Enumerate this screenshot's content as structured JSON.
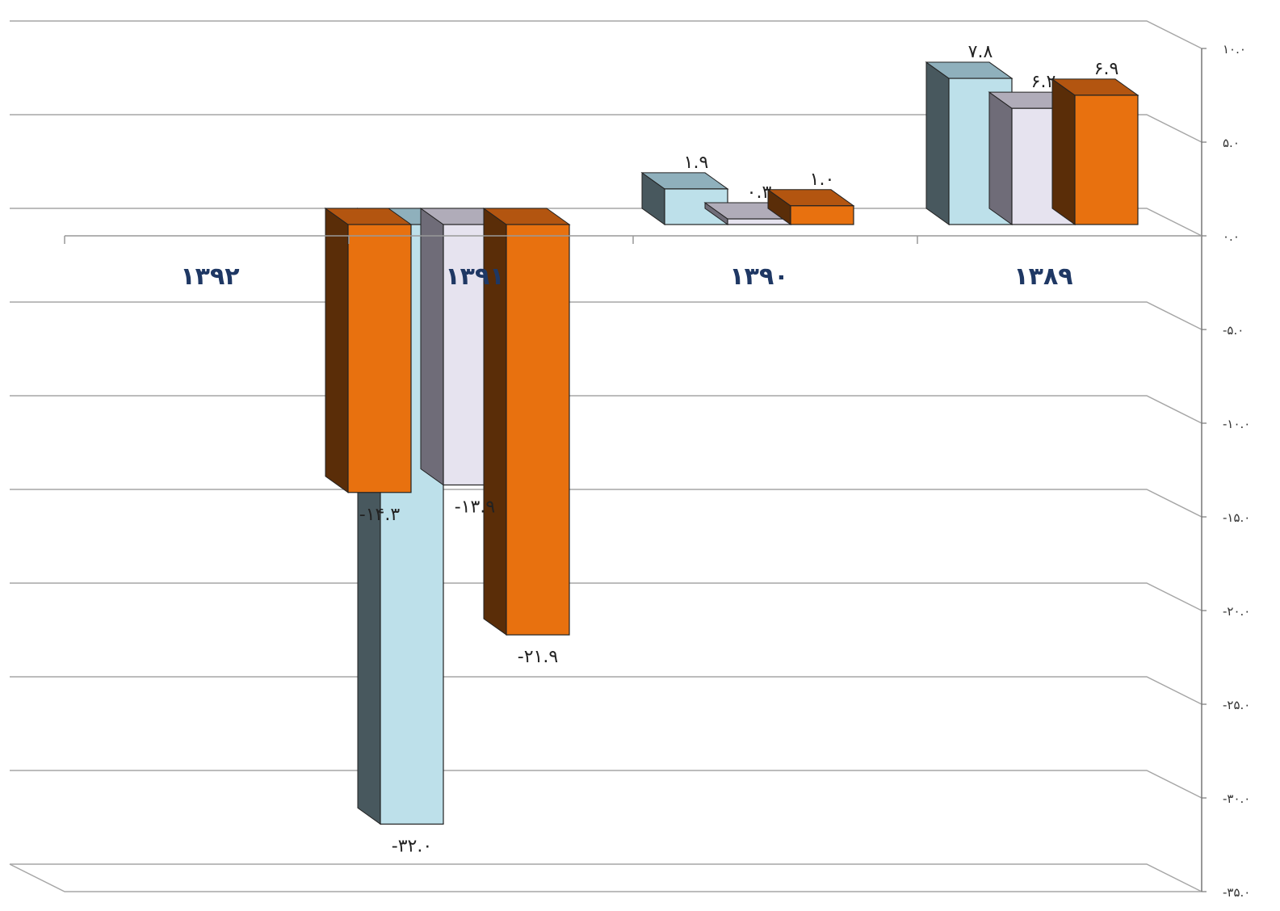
{
  "chart_data": {
    "type": "bar",
    "categories": [
      "۱۳۸۹",
      "۱۳۹۰",
      "۱۳۹۱",
      "۱۳۹۲"
    ],
    "series": [
      {
        "values": [
          7.8,
          1.9,
          -32.0,
          null
        ],
        "labels": [
          "۷.۸",
          "۱.۹",
          "-۳۲.۰",
          ""
        ]
      },
      {
        "values": [
          6.2,
          0.3,
          -13.9,
          null
        ],
        "labels": [
          "۶.۲",
          "۰.۳",
          "-۱۳.۹",
          ""
        ]
      },
      {
        "values": [
          6.9,
          1.0,
          -21.9,
          -14.3
        ],
        "labels": [
          "۶.۹",
          "۱.۰",
          "-۲۱.۹",
          "-۱۴.۳"
        ]
      }
    ],
    "ylim": [
      -35,
      10
    ],
    "yticks": [
      10,
      5,
      0,
      -5,
      -10,
      -15,
      -20,
      -25,
      -30,
      -35
    ],
    "ytick_labels": [
      "۱۰.۰",
      "۵.۰",
      "۰.۰",
      "-۵.۰",
      "-۱۰.۰",
      "-۱۵.۰",
      "-۲۰.۰",
      "-۲۵.۰",
      "-۳۰.۰",
      "-۳۵.۰"
    ],
    "grid": true,
    "colors": {
      "series_front": [
        "#bde0ea",
        "#e6e3ef",
        "#e8710f"
      ],
      "series_top": [
        "#8fb0bc",
        "#b0acb9",
        "#b35510"
      ],
      "series_side": [
        "#48585e",
        "#6f6c78",
        "#5a2d08"
      ],
      "grid": "#a6a6a6",
      "category_text": "#1f3864"
    }
  }
}
